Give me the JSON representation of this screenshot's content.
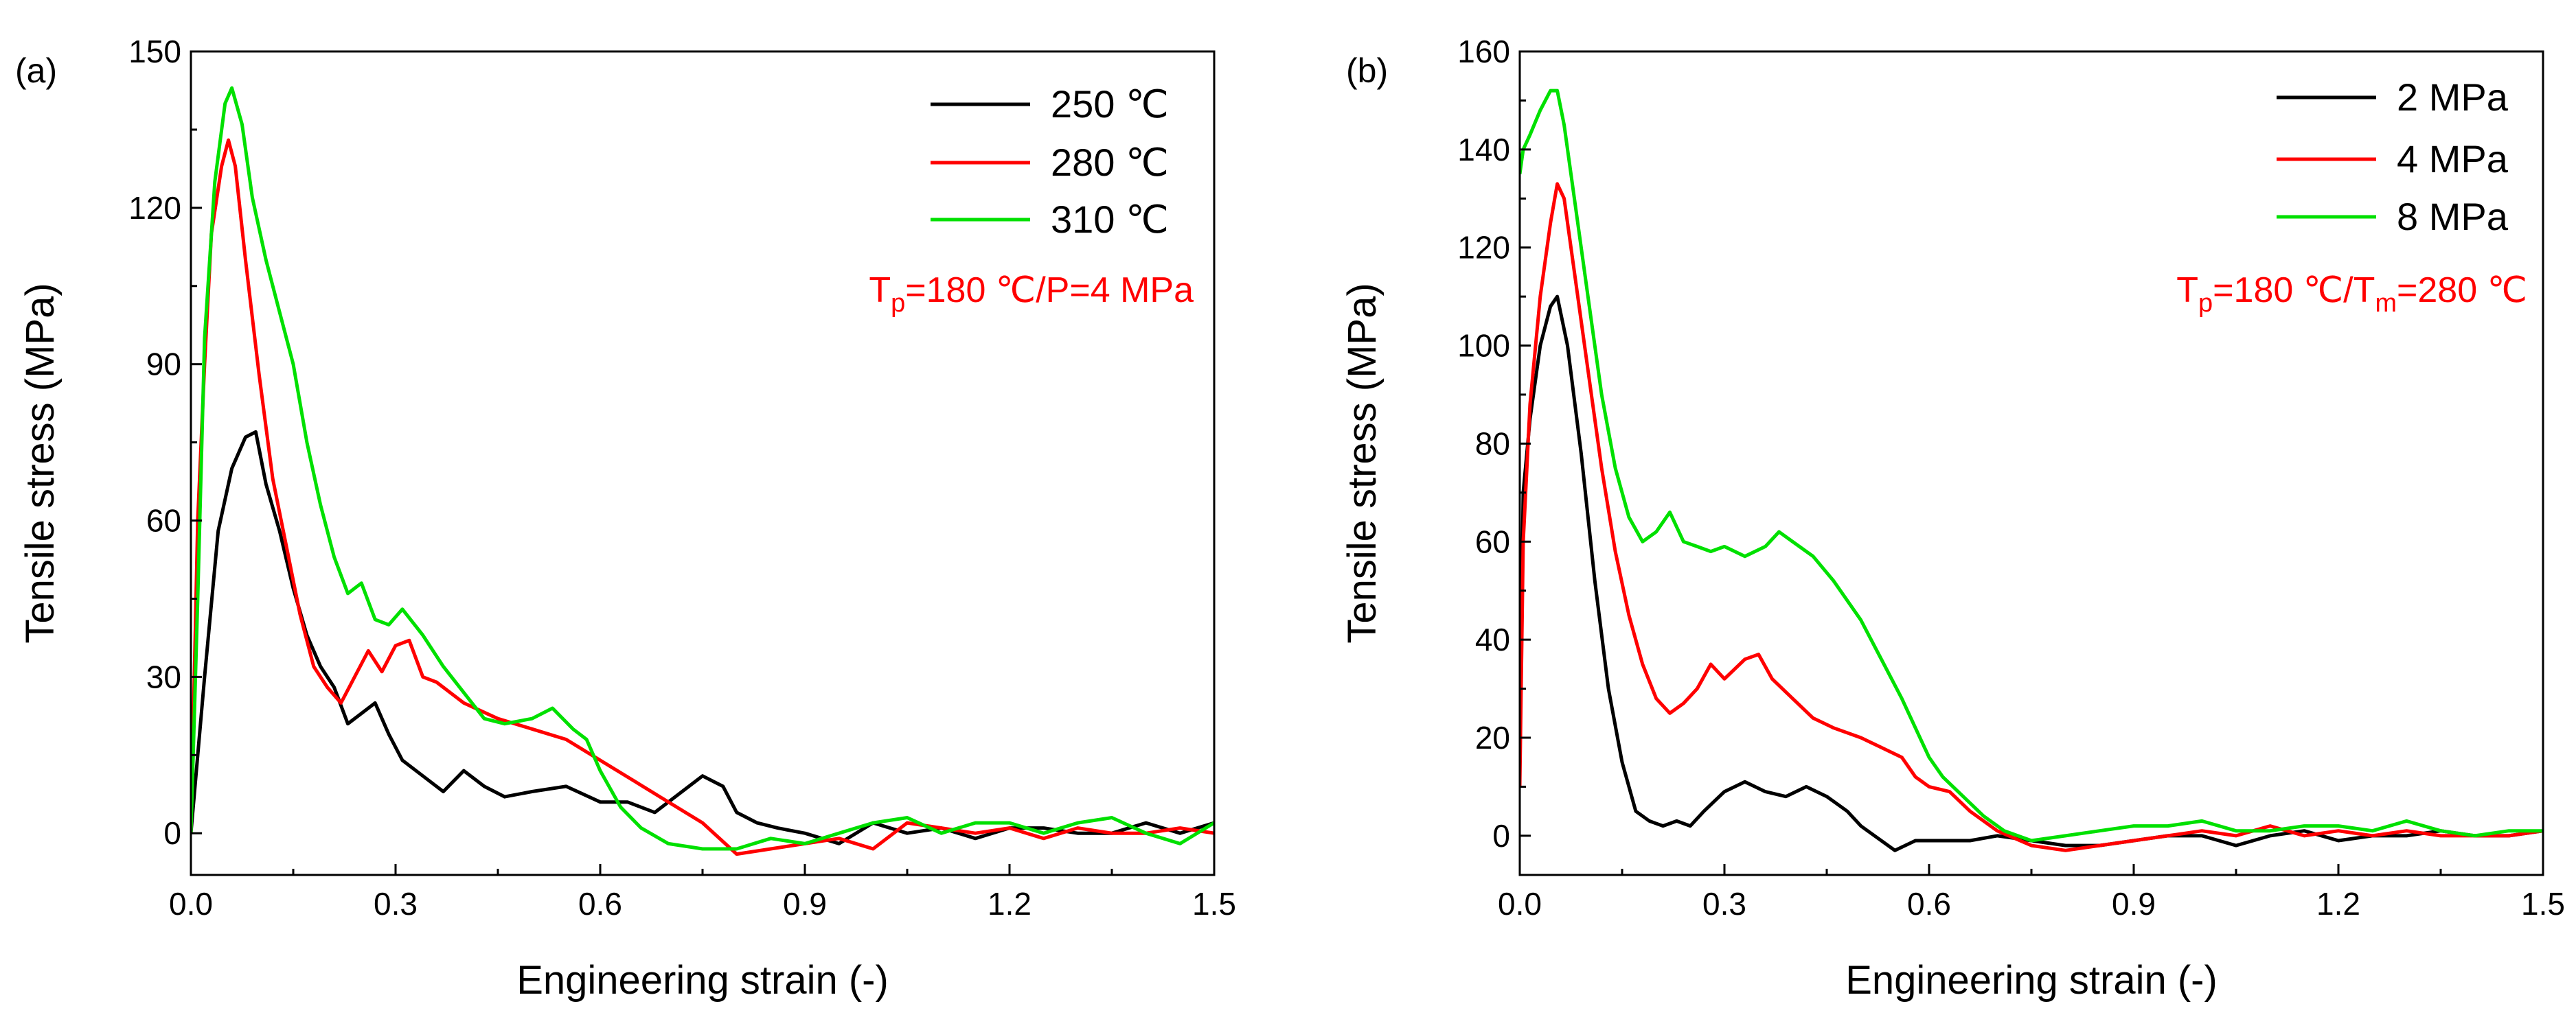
{
  "figure": {
    "panels": [
      {
        "panel_label": "(a)",
        "annotation": {
          "prefix": "T",
          "sub1": "p",
          "mid": "=180 ℃/P=4 MPa",
          "sub2": "",
          "suffix": ""
        }
      },
      {
        "panel_label": "(b)",
        "annotation": {
          "prefix": "T",
          "sub1": "p",
          "mid": "=180 ℃/T",
          "sub2": "m",
          "suffix": "=280 ℃"
        }
      }
    ]
  },
  "chart_data": [
    {
      "type": "line",
      "title": "",
      "xlabel": "Engineering strain (-)",
      "ylabel": "Tensile stress (MPa)",
      "xlim": [
        0,
        1.5
      ],
      "ylim": [
        -8,
        150
      ],
      "xticks": [
        0.0,
        0.3,
        0.6,
        0.9,
        1.2,
        1.5
      ],
      "xtick_labels": [
        "0.0",
        "0.3",
        "0.6",
        "0.9",
        "1.2",
        "1.5"
      ],
      "yticks": [
        0,
        30,
        60,
        90,
        120,
        150
      ],
      "ytick_labels": [
        "0",
        "30",
        "60",
        "90",
        "120",
        "150"
      ],
      "legend_position": "top-right",
      "series": [
        {
          "name": "250 ℃",
          "color": "#000000",
          "x": [
            0,
            0.02,
            0.04,
            0.06,
            0.08,
            0.095,
            0.11,
            0.13,
            0.15,
            0.17,
            0.19,
            0.21,
            0.23,
            0.25,
            0.27,
            0.29,
            0.31,
            0.34,
            0.37,
            0.4,
            0.43,
            0.46,
            0.5,
            0.55,
            0.6,
            0.64,
            0.68,
            0.72,
            0.75,
            0.78,
            0.8,
            0.83,
            0.86,
            0.9,
            0.95,
            1.0,
            1.05,
            1.1,
            1.15,
            1.2,
            1.25,
            1.3,
            1.35,
            1.4,
            1.45,
            1.5
          ],
          "y": [
            0,
            30,
            58,
            70,
            76,
            77,
            67,
            58,
            47,
            38,
            32,
            28,
            21,
            23,
            25,
            19,
            14,
            11,
            8,
            12,
            9,
            7,
            8,
            9,
            6,
            6,
            4,
            8,
            11,
            9,
            4,
            2,
            1,
            0,
            -2,
            2,
            0,
            1,
            -1,
            1,
            1,
            0,
            0,
            2,
            0,
            2
          ]
        },
        {
          "name": "280 ℃",
          "color": "#ff0000",
          "x": [
            0,
            0.01,
            0.02,
            0.03,
            0.045,
            0.055,
            0.065,
            0.08,
            0.1,
            0.12,
            0.14,
            0.16,
            0.18,
            0.2,
            0.22,
            0.24,
            0.26,
            0.28,
            0.3,
            0.32,
            0.34,
            0.36,
            0.4,
            0.45,
            0.5,
            0.55,
            0.6,
            0.65,
            0.7,
            0.75,
            0.8,
            0.85,
            0.9,
            0.95,
            1.0,
            1.05,
            1.1,
            1.15,
            1.2,
            1.25,
            1.3,
            1.35,
            1.4,
            1.45,
            1.5
          ],
          "y": [
            0,
            60,
            90,
            115,
            128,
            133,
            128,
            110,
            88,
            68,
            55,
            42,
            32,
            28,
            25,
            30,
            35,
            31,
            36,
            37,
            30,
            29,
            25,
            22,
            20,
            18,
            14,
            10,
            6,
            2,
            -4,
            -3,
            -2,
            -1,
            -3,
            2,
            1,
            0,
            1,
            -1,
            1,
            0,
            0,
            1,
            0
          ]
        },
        {
          "name": "310 ℃",
          "color": "#00e000",
          "x": [
            0,
            0.01,
            0.02,
            0.035,
            0.05,
            0.06,
            0.075,
            0.09,
            0.11,
            0.13,
            0.15,
            0.17,
            0.19,
            0.21,
            0.23,
            0.25,
            0.27,
            0.29,
            0.31,
            0.34,
            0.37,
            0.4,
            0.43,
            0.46,
            0.5,
            0.53,
            0.56,
            0.58,
            0.6,
            0.63,
            0.66,
            0.7,
            0.75,
            0.8,
            0.85,
            0.9,
            0.95,
            1.0,
            1.05,
            1.1,
            1.15,
            1.2,
            1.25,
            1.3,
            1.35,
            1.4,
            1.45,
            1.5
          ],
          "y": [
            0,
            45,
            95,
            125,
            140,
            143,
            136,
            122,
            110,
            100,
            90,
            75,
            63,
            53,
            46,
            48,
            41,
            40,
            43,
            38,
            32,
            27,
            22,
            21,
            22,
            24,
            20,
            18,
            12,
            5,
            1,
            -2,
            -3,
            -3,
            -1,
            -2,
            0,
            2,
            3,
            0,
            2,
            2,
            0,
            2,
            3,
            0,
            -2,
            2
          ]
        }
      ]
    },
    {
      "type": "line",
      "title": "",
      "xlabel": "Engineering strain (-)",
      "ylabel": "Tensile stress (MPa)",
      "xlim": [
        0,
        1.5
      ],
      "ylim": [
        -8,
        160
      ],
      "xticks": [
        0.0,
        0.3,
        0.6,
        0.9,
        1.2,
        1.5
      ],
      "xtick_labels": [
        "0.0",
        "0.3",
        "0.6",
        "0.9",
        "1.2",
        "1.5"
      ],
      "yticks": [
        0,
        20,
        40,
        60,
        80,
        100,
        120,
        140,
        160
      ],
      "ytick_labels": [
        "0",
        "20",
        "40",
        "60",
        "80",
        "100",
        "120",
        "140",
        "160"
      ],
      "legend_position": "top-right",
      "series": [
        {
          "name": "2 MPa",
          "color": "#000000",
          "x": [
            0,
            0.005,
            0.015,
            0.03,
            0.045,
            0.055,
            0.07,
            0.09,
            0.11,
            0.13,
            0.15,
            0.17,
            0.19,
            0.21,
            0.23,
            0.25,
            0.27,
            0.3,
            0.33,
            0.36,
            0.39,
            0.42,
            0.45,
            0.48,
            0.5,
            0.52,
            0.55,
            0.58,
            0.62,
            0.66,
            0.7,
            0.75,
            0.8,
            0.85,
            0.9,
            0.95,
            1.0,
            1.05,
            1.1,
            1.15,
            1.2,
            1.25,
            1.3,
            1.35,
            1.4,
            1.45,
            1.5
          ],
          "y": [
            20,
            70,
            85,
            100,
            108,
            110,
            100,
            78,
            52,
            30,
            15,
            5,
            3,
            2,
            3,
            2,
            5,
            9,
            11,
            9,
            8,
            10,
            8,
            5,
            2,
            0,
            -3,
            -1,
            -1,
            -1,
            0,
            -1,
            -2,
            -2,
            -1,
            0,
            0,
            -2,
            0,
            1,
            -1,
            0,
            0,
            1,
            0,
            0,
            1
          ]
        },
        {
          "name": "4 MPa",
          "color": "#ff0000",
          "x": [
            0,
            0.005,
            0.015,
            0.03,
            0.045,
            0.055,
            0.065,
            0.08,
            0.1,
            0.12,
            0.14,
            0.16,
            0.18,
            0.2,
            0.22,
            0.24,
            0.26,
            0.28,
            0.3,
            0.33,
            0.35,
            0.37,
            0.4,
            0.43,
            0.46,
            0.5,
            0.53,
            0.56,
            0.58,
            0.6,
            0.63,
            0.66,
            0.7,
            0.75,
            0.8,
            0.85,
            0.9,
            0.95,
            1.0,
            1.05,
            1.1,
            1.15,
            1.2,
            1.25,
            1.3,
            1.35,
            1.4,
            1.45,
            1.5
          ],
          "y": [
            10,
            60,
            88,
            110,
            125,
            133,
            130,
            115,
            95,
            75,
            58,
            45,
            35,
            28,
            25,
            27,
            30,
            35,
            32,
            36,
            37,
            32,
            28,
            24,
            22,
            20,
            18,
            16,
            12,
            10,
            9,
            5,
            1,
            -2,
            -3,
            -2,
            -1,
            0,
            1,
            0,
            2,
            0,
            1,
            0,
            1,
            0,
            0,
            0,
            1
          ]
        },
        {
          "name": "8 MPa",
          "color": "#00e000",
          "x": [
            0,
            0.005,
            0.015,
            0.03,
            0.045,
            0.055,
            0.065,
            0.08,
            0.1,
            0.12,
            0.14,
            0.16,
            0.18,
            0.2,
            0.22,
            0.24,
            0.26,
            0.28,
            0.3,
            0.33,
            0.36,
            0.38,
            0.4,
            0.43,
            0.46,
            0.5,
            0.53,
            0.56,
            0.58,
            0.6,
            0.62,
            0.65,
            0.68,
            0.71,
            0.75,
            0.8,
            0.85,
            0.9,
            0.95,
            1.0,
            1.05,
            1.1,
            1.15,
            1.2,
            1.25,
            1.3,
            1.35,
            1.4,
            1.45,
            1.5
          ],
          "y": [
            135,
            140,
            143,
            148,
            152,
            152,
            145,
            130,
            110,
            90,
            75,
            65,
            60,
            62,
            66,
            60,
            59,
            58,
            59,
            57,
            59,
            62,
            60,
            57,
            52,
            44,
            36,
            28,
            22,
            16,
            12,
            8,
            4,
            1,
            -1,
            0,
            1,
            2,
            2,
            3,
            1,
            1,
            2,
            2,
            1,
            3,
            1,
            0,
            1,
            1
          ]
        }
      ]
    }
  ]
}
